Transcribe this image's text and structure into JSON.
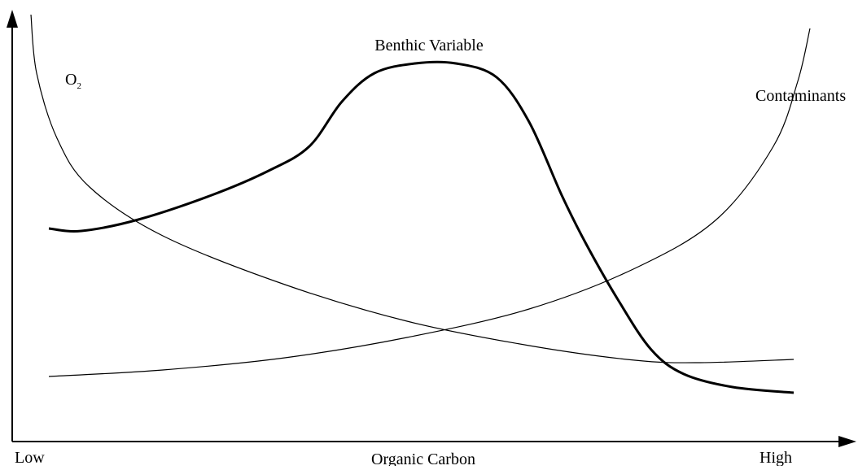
{
  "diagram": {
    "title": "Benthic Variable",
    "curves": [
      {
        "label": "O",
        "subscript": "2"
      },
      {
        "label": "Contaminants"
      }
    ],
    "x_axis": {
      "label": "Organic Carbon",
      "low": "Low",
      "high": "High"
    }
  }
}
